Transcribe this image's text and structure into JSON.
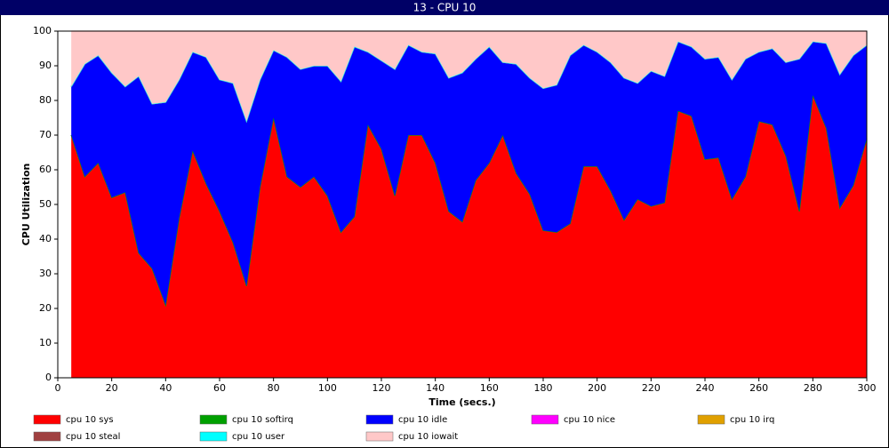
{
  "chart_data": {
    "type": "stacked_area",
    "title": "13 - CPU 10",
    "xlabel": "Time (secs.)",
    "ylabel": "CPU Utilization",
    "x": [
      5,
      10,
      15,
      20,
      25,
      30,
      35,
      40,
      45,
      50,
      55,
      60,
      65,
      70,
      75,
      80,
      85,
      90,
      95,
      100,
      105,
      110,
      115,
      120,
      125,
      130,
      135,
      140,
      145,
      150,
      155,
      160,
      165,
      170,
      175,
      180,
      185,
      190,
      195,
      200,
      205,
      210,
      215,
      220,
      225,
      230,
      235,
      240,
      245,
      250,
      255,
      260,
      265,
      270,
      275,
      280,
      285,
      290,
      295,
      300
    ],
    "series": [
      {
        "name": "cpu 10 sys",
        "color": "#ff0000",
        "values": [
          70,
          58,
          62,
          52,
          53.5,
          36,
          31.5,
          21,
          46,
          65.5,
          56,
          48,
          39,
          26.5,
          55,
          75,
          58,
          55,
          58,
          52.5,
          42,
          46.5,
          73,
          66,
          52.5,
          70,
          70,
          62,
          48,
          45,
          57,
          62,
          70,
          59,
          53,
          42.5,
          42,
          44.5,
          61,
          61,
          54,
          45.5,
          51.5,
          49.5,
          50.5,
          77,
          75.5,
          63,
          63.5,
          51.5,
          58,
          74,
          73,
          64,
          48,
          81.5,
          72,
          49,
          55.5,
          69
        ]
      },
      {
        "name": "cpu 10 softirq",
        "color": "#00a000",
        "values": [
          0,
          0,
          0,
          0,
          0,
          0,
          0,
          0,
          0,
          0,
          0,
          0,
          0,
          0,
          0,
          0,
          0,
          0,
          0,
          0,
          0,
          0,
          0,
          0,
          0,
          0,
          0,
          0,
          0,
          0,
          0,
          0,
          0,
          0,
          0,
          0,
          0,
          0,
          0,
          0,
          0,
          0,
          0,
          0,
          0,
          0,
          0,
          0,
          0,
          0,
          0,
          0,
          0,
          0,
          0,
          0,
          0,
          0,
          0,
          0
        ]
      },
      {
        "name": "cpu 10 idle",
        "color": "#0000ff",
        "values": [
          14,
          32.5,
          31,
          36,
          30.5,
          51,
          47.5,
          58.5,
          40,
          28.5,
          36.5,
          38,
          46,
          47.5,
          31,
          19.5,
          34.5,
          34,
          32,
          37.5,
          43.5,
          49,
          21,
          25.5,
          36.5,
          26,
          24,
          31.5,
          38.5,
          43,
          35,
          33.5,
          21,
          31.5,
          33.5,
          41,
          42.5,
          48.5,
          35,
          33,
          37,
          41,
          33.5,
          39,
          36.5,
          20,
          20,
          29,
          29,
          34.5,
          34,
          20,
          22,
          27,
          44,
          15.5,
          24.5,
          38.5,
          37.5,
          27
        ]
      },
      {
        "name": "cpu 10 nice",
        "color": "#ff00ff",
        "values": [
          0,
          0,
          0,
          0,
          0,
          0,
          0,
          0,
          0,
          0,
          0,
          0,
          0,
          0,
          0,
          0,
          0,
          0,
          0,
          0,
          0,
          0,
          0,
          0,
          0,
          0,
          0,
          0,
          0,
          0,
          0,
          0,
          0,
          0,
          0,
          0,
          0,
          0,
          0,
          0,
          0,
          0,
          0,
          0,
          0,
          0,
          0,
          0,
          0,
          0,
          0,
          0,
          0,
          0,
          0,
          0,
          0,
          0,
          0,
          0
        ]
      },
      {
        "name": "cpu 10 irq",
        "color": "#e0a000",
        "values": [
          0,
          0,
          0,
          0,
          0,
          0,
          0,
          0,
          0,
          0,
          0,
          0,
          0,
          0,
          0,
          0,
          0,
          0,
          0,
          0,
          0,
          0,
          0,
          0,
          0,
          0,
          0,
          0,
          0,
          0,
          0,
          0,
          0,
          0,
          0,
          0,
          0,
          0,
          0,
          0,
          0,
          0,
          0,
          0,
          0,
          0,
          0,
          0,
          0,
          0,
          0,
          0,
          0,
          0,
          0,
          0,
          0,
          0,
          0,
          0
        ]
      },
      {
        "name": "cpu 10 steal",
        "color": "#a04040",
        "values": [
          0,
          0,
          0,
          0,
          0,
          0,
          0,
          0,
          0,
          0,
          0,
          0,
          0,
          0,
          0,
          0,
          0,
          0,
          0,
          0,
          0,
          0,
          0,
          0,
          0,
          0,
          0,
          0,
          0,
          0,
          0,
          0,
          0,
          0,
          0,
          0,
          0,
          0,
          0,
          0,
          0,
          0,
          0,
          0,
          0,
          0,
          0,
          0,
          0,
          0,
          0,
          0,
          0,
          0,
          0,
          0,
          0,
          0,
          0,
          0
        ]
      },
      {
        "name": "cpu 10 user",
        "color": "#00ffff",
        "values": [
          0,
          0,
          0,
          0,
          0,
          0,
          0,
          0,
          0,
          0,
          0,
          0,
          0,
          0,
          0,
          0,
          0,
          0,
          0,
          0,
          0,
          0,
          0,
          0,
          0,
          0,
          0,
          0,
          0,
          0,
          0,
          0,
          0,
          0,
          0,
          0,
          0,
          0,
          0,
          0,
          0,
          0,
          0,
          0,
          0,
          0,
          0,
          0,
          0,
          0,
          0,
          0,
          0,
          0,
          0,
          0,
          0,
          0,
          0,
          0
        ]
      },
      {
        "name": "cpu 10 iowait",
        "color": "#ffc8c8",
        "values": [
          16,
          9.5,
          7,
          12,
          16,
          13,
          21,
          20.5,
          14,
          6,
          7.5,
          14,
          15,
          26,
          14,
          5.5,
          7.5,
          11,
          10,
          10,
          14.5,
          4.5,
          6,
          8.5,
          11,
          4,
          6,
          6.5,
          13.5,
          12,
          8,
          4.5,
          9,
          9.5,
          13.5,
          16.5,
          15.5,
          7,
          4,
          6,
          9,
          13.5,
          15,
          11.5,
          13,
          3,
          4.5,
          8,
          7.5,
          14,
          8,
          6,
          5,
          9,
          8,
          3,
          3.5,
          12.5,
          7,
          4
        ]
      }
    ],
    "xlim": [
      0,
      300
    ],
    "xticks": [
      0,
      20,
      40,
      60,
      80,
      100,
      120,
      140,
      160,
      180,
      200,
      220,
      240,
      260,
      280,
      300
    ],
    "ylim": [
      0,
      100
    ],
    "yticks": [
      0,
      10,
      20,
      30,
      40,
      50,
      60,
      70,
      80,
      90,
      100
    ]
  }
}
